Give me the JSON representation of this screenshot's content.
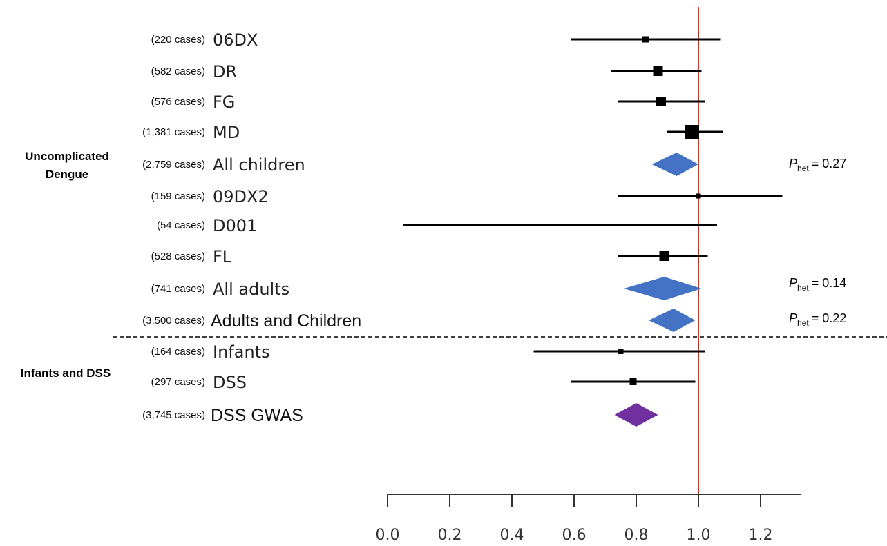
{
  "chart_data": {
    "type": "forest",
    "xlim": [
      0.0,
      1.33
    ],
    "x_ticks": [
      "0.0",
      "0.2",
      "0.4",
      "0.6",
      "0.8",
      "1.0",
      "1.2"
    ],
    "reference_line": 1.0,
    "reference_line_color": "#c0392b",
    "group_labels": [
      {
        "id": "uncomplicated",
        "lines": [
          "Uncomplicated",
          "Dengue"
        ]
      },
      {
        "id": "infants",
        "lines": [
          "Infants and DSS"
        ]
      }
    ],
    "rows": [
      {
        "id": "06dx",
        "cases": "(220 cases)",
        "label": "06DX",
        "kind": "study",
        "estimate": 0.83,
        "lower": 0.59,
        "upper": 1.07,
        "box": 9
      },
      {
        "id": "dr",
        "cases": "(582 cases)",
        "label": "DR",
        "kind": "study",
        "estimate": 0.87,
        "lower": 0.72,
        "upper": 1.01,
        "box": 14
      },
      {
        "id": "fg",
        "cases": "(576 cases)",
        "label": "FG",
        "kind": "study",
        "estimate": 0.88,
        "lower": 0.74,
        "upper": 1.02,
        "box": 14
      },
      {
        "id": "md",
        "cases": "(1,381 cases)",
        "label": "MD",
        "kind": "study",
        "estimate": 0.98,
        "lower": 0.9,
        "upper": 1.08,
        "box": 20
      },
      {
        "id": "all-children",
        "cases": "(2,759 cases)",
        "label": "All children",
        "kind": "summary",
        "estimate": 0.93,
        "lower": 0.85,
        "upper": 1.0,
        "color": "#4472c4"
      },
      {
        "id": "09dx2",
        "cases": "(159 cases)",
        "label": "09DX2",
        "kind": "study",
        "estimate": 1.0,
        "lower": 0.74,
        "upper": 1.27,
        "box": 7
      },
      {
        "id": "d001",
        "cases": "(54 cases)",
        "label": "D001",
        "kind": "study",
        "estimate": 0.56,
        "lower": 0.05,
        "upper": 1.06,
        "box": 3
      },
      {
        "id": "fl",
        "cases": "(528 cases)",
        "label": "FL",
        "kind": "study",
        "estimate": 0.89,
        "lower": 0.74,
        "upper": 1.03,
        "box": 14
      },
      {
        "id": "all-adults",
        "cases": "(741 cases)",
        "label": "All adults",
        "kind": "summary",
        "estimate": 0.89,
        "lower": 0.76,
        "upper": 1.01,
        "color": "#4472c4"
      },
      {
        "id": "adults-children",
        "cases": "(3,500 cases)",
        "label": "Adults and Children",
        "kind": "summary",
        "estimate": 0.92,
        "lower": 0.84,
        "upper": 0.99,
        "color": "#4472c4",
        "style": "bold-font"
      },
      {
        "id": "infants",
        "cases": "(164 cases)",
        "label": "Infants",
        "kind": "study",
        "estimate": 0.75,
        "lower": 0.47,
        "upper": 1.02,
        "box": 8
      },
      {
        "id": "dss",
        "cases": "(297 cases)",
        "label": "DSS",
        "kind": "study",
        "estimate": 0.79,
        "lower": 0.59,
        "upper": 0.99,
        "box": 10
      },
      {
        "id": "dss-gwas",
        "cases": "(3,745 cases)",
        "label": "DSS GWAS",
        "kind": "summary",
        "estimate": 0.8,
        "lower": 0.73,
        "upper": 0.87,
        "color": "#7030a0",
        "style": "bold-font"
      }
    ],
    "heterogeneity": [
      {
        "row": "all-children",
        "p": "P",
        "sub": "het",
        "value": "= 0.27"
      },
      {
        "row": "all-adults",
        "p": "P",
        "sub": "het",
        "value": "= 0.14"
      },
      {
        "row": "adults-children",
        "p": "P",
        "sub": "het",
        "value": "= 0.22"
      }
    ]
  }
}
